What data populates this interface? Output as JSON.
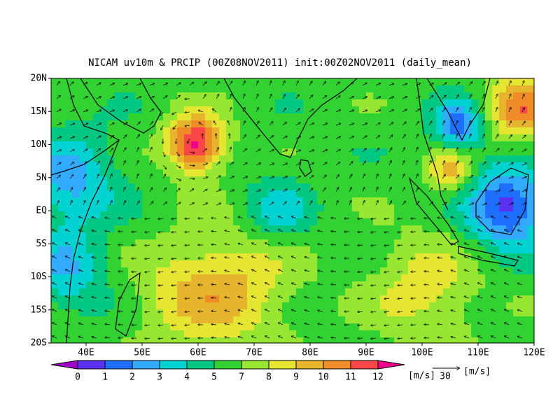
{
  "title": "NICAM uv10m & PRCIP (00Z08NOV2011) init:00Z02NOV2011 (daily_mean)",
  "lat_labels": [
    "20N",
    "15N",
    "10N",
    "5N",
    "EQ",
    "5S",
    "10S",
    "15S",
    "20S"
  ],
  "lon_labels": [
    "40E",
    "50E",
    "60E",
    "70E",
    "80E",
    "90E",
    "100E",
    "110E",
    "120E"
  ],
  "colorbar": {
    "labels": [
      0,
      1,
      2,
      3,
      4,
      5,
      7,
      8,
      9,
      10,
      11,
      12
    ],
    "unit": "[m/s]",
    "colors": [
      "#a000c8",
      "#5a32f0",
      "#1e6eff",
      "#32aaff",
      "#00d2d2",
      "#00c882",
      "#32d232",
      "#96e632",
      "#e6e632",
      "#e6b42d",
      "#f08c28",
      "#fa4646",
      "#f0008c"
    ]
  },
  "reference_vector": {
    "label": "30",
    "unit": "[m/s]"
  }
}
